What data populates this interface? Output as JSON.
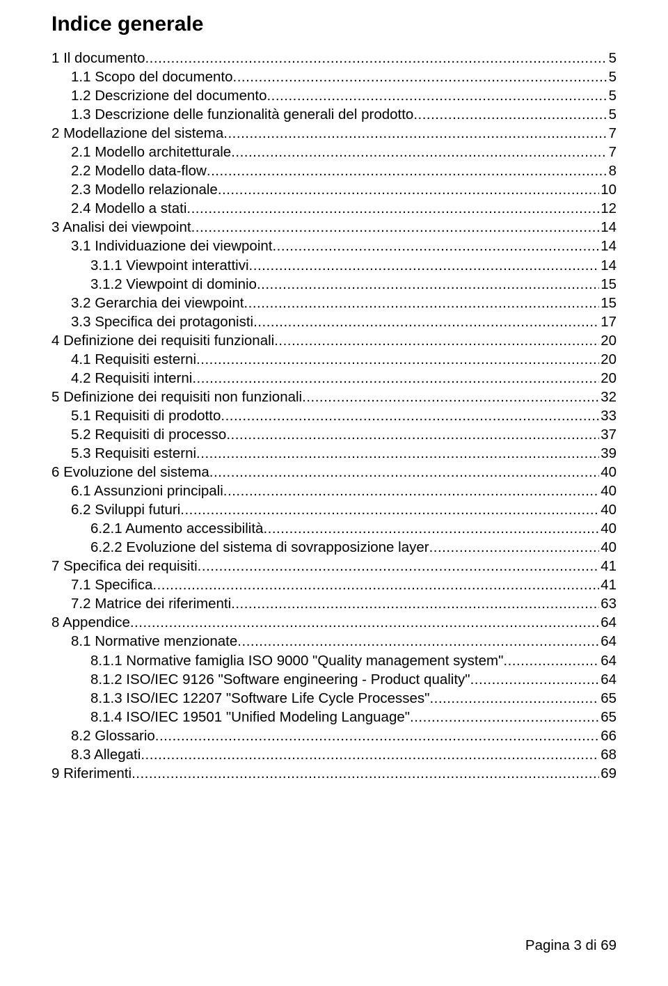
{
  "title": "Indice generale",
  "footer": "Pagina 3 di 69",
  "toc": [
    {
      "indent": 0,
      "label": " 1 Il documento",
      "page": "5"
    },
    {
      "indent": 1,
      "label": "1.1 Scopo del documento",
      "page": "5"
    },
    {
      "indent": 1,
      "label": "1.2 Descrizione del documento",
      "page": " 5"
    },
    {
      "indent": 1,
      "label": "1.3 Descrizione delle funzionalità generali del prodotto",
      "page": " 5"
    },
    {
      "indent": 0,
      "label": " 2 Modellazione del sistema",
      "page": "7"
    },
    {
      "indent": 1,
      "label": "2.1 Modello architetturale",
      "page": " 7"
    },
    {
      "indent": 1,
      "label": "2.2 Modello data-flow",
      "page": "8"
    },
    {
      "indent": 1,
      "label": "2.3 Modello relazionale",
      "page": "10"
    },
    {
      "indent": 1,
      "label": "2.4 Modello a stati",
      "page": "12"
    },
    {
      "indent": 0,
      "label": " 3 Analisi dei viewpoint",
      "page": " 14"
    },
    {
      "indent": 1,
      "label": "3.1 Individuazione dei viewpoint",
      "page": "14"
    },
    {
      "indent": 2,
      "label": "3.1.1 Viewpoint interattivi",
      "page": "14"
    },
    {
      "indent": 2,
      "label": "3.1.2 Viewpoint di dominio",
      "page": "15"
    },
    {
      "indent": 1,
      "label": "3.2 Gerarchia dei viewpoint",
      "page": " 15"
    },
    {
      "indent": 1,
      "label": "3.3 Specifica dei protagonisti",
      "page": "17"
    },
    {
      "indent": 0,
      "label": " 4 Definizione dei requisiti funzionali",
      "page": "20"
    },
    {
      "indent": 1,
      "label": "4.1 Requisiti esterni",
      "page": " 20"
    },
    {
      "indent": 1,
      "label": "4.2 Requisiti interni",
      "page": " 20"
    },
    {
      "indent": 0,
      "label": " 5 Definizione dei requisiti non funzionali",
      "page": "32"
    },
    {
      "indent": 1,
      "label": "5.1 Requisiti di prodotto",
      "page": " 33"
    },
    {
      "indent": 1,
      "label": "5.2 Requisiti di processo",
      "page": "37"
    },
    {
      "indent": 1,
      "label": "5.3 Requisiti esterni",
      "page": " 39"
    },
    {
      "indent": 0,
      "label": " 6 Evoluzione del sistema",
      "page": " 40"
    },
    {
      "indent": 1,
      "label": "6.1 Assunzioni principali",
      "page": " 40"
    },
    {
      "indent": 1,
      "label": "6.2 Sviluppi futuri",
      "page": " 40"
    },
    {
      "indent": 2,
      "label": "6.2.1 Aumento accessibilità",
      "page": "40"
    },
    {
      "indent": 2,
      "label": "6.2.2 Evoluzione del sistema di sovrapposizione layer",
      "page": "40"
    },
    {
      "indent": 0,
      "label": " 7 Specifica dei requisiti",
      "page": " 41"
    },
    {
      "indent": 1,
      "label": "7.1 Specifica",
      "page": " 41"
    },
    {
      "indent": 1,
      "label": "7.2 Matrice dei riferimenti",
      "page": " 63"
    },
    {
      "indent": 0,
      "label": " 8 Appendice",
      "page": " 64"
    },
    {
      "indent": 1,
      "label": "8.1 Normative menzionate",
      "page": "64"
    },
    {
      "indent": 2,
      "label": "8.1.1 Normative famiglia ISO 9000 \"Quality management system\"",
      "page": "64"
    },
    {
      "indent": 2,
      "label": "8.1.2 ISO/IEC 9126 \"Software engineering - Product quality\"",
      "page": "64"
    },
    {
      "indent": 2,
      "label": "8.1.3 ISO/IEC 12207 \"Software Life Cycle Processes\"",
      "page": "65"
    },
    {
      "indent": 2,
      "label": "8.1.4 ISO/IEC 19501 \"Unified Modeling Language\"",
      "page": "65"
    },
    {
      "indent": 1,
      "label": "8.2 Glossario",
      "page": "66"
    },
    {
      "indent": 1,
      "label": "8.3 Allegati",
      "page": " 68"
    },
    {
      "indent": 0,
      "label": " 9 Riferimenti",
      "page": " 69"
    }
  ]
}
